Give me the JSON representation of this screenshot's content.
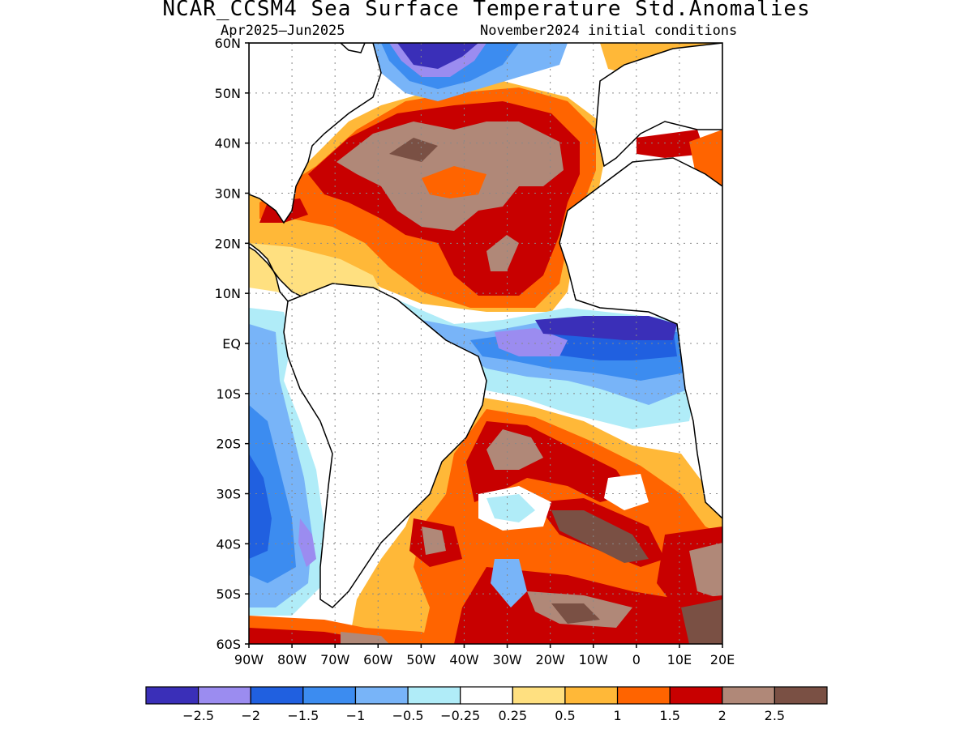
{
  "title": "NCAR_CCSM4 Sea Surface Temperature Std.Anomalies",
  "subtitle_left": "Apr2025–Jun2025",
  "subtitle_right": "November2024 initial conditions",
  "map": {
    "projection": "lat-lon",
    "lon_range": [
      -90,
      20
    ],
    "lat_range": [
      -60,
      60
    ],
    "y_ticks": [
      {
        "lat": 60,
        "label": "60N"
      },
      {
        "lat": 50,
        "label": "50N"
      },
      {
        "lat": 40,
        "label": "40N"
      },
      {
        "lat": 30,
        "label": "30N"
      },
      {
        "lat": 20,
        "label": "20N"
      },
      {
        "lat": 10,
        "label": "10N"
      },
      {
        "lat": 0,
        "label": "EQ"
      },
      {
        "lat": -10,
        "label": "10S"
      },
      {
        "lat": -20,
        "label": "20S"
      },
      {
        "lat": -30,
        "label": "30S"
      },
      {
        "lat": -40,
        "label": "40S"
      },
      {
        "lat": -50,
        "label": "50S"
      },
      {
        "lat": -60,
        "label": "60S"
      }
    ],
    "x_ticks": [
      {
        "lon": -90,
        "label": "90W"
      },
      {
        "lon": -80,
        "label": "80W"
      },
      {
        "lon": -70,
        "label": "70W"
      },
      {
        "lon": -60,
        "label": "60W"
      },
      {
        "lon": -50,
        "label": "50W"
      },
      {
        "lon": -40,
        "label": "40W"
      },
      {
        "lon": -30,
        "label": "30W"
      },
      {
        "lon": -20,
        "label": "20W"
      },
      {
        "lon": -10,
        "label": "10W"
      },
      {
        "lon": 0,
        "label": "0"
      },
      {
        "lon": 10,
        "label": "10E"
      },
      {
        "lon": 20,
        "label": "20E"
      }
    ],
    "grid_dotted": true
  },
  "colorbar": {
    "colors": [
      "#3a2fb8",
      "#9b8cf0",
      "#2060e0",
      "#3c8cf0",
      "#78b4f8",
      "#b0ecf8",
      "#ffffff",
      "#ffe080",
      "#ffb838",
      "#ff6400",
      "#c80000",
      "#b08878",
      "#7a5044"
    ],
    "labels": [
      "−2.5",
      "−2",
      "−1.5",
      "−1",
      "−0.5",
      "−0.25",
      "0.25",
      "0.5",
      "1",
      "1.5",
      "2",
      "2.5"
    ]
  }
}
